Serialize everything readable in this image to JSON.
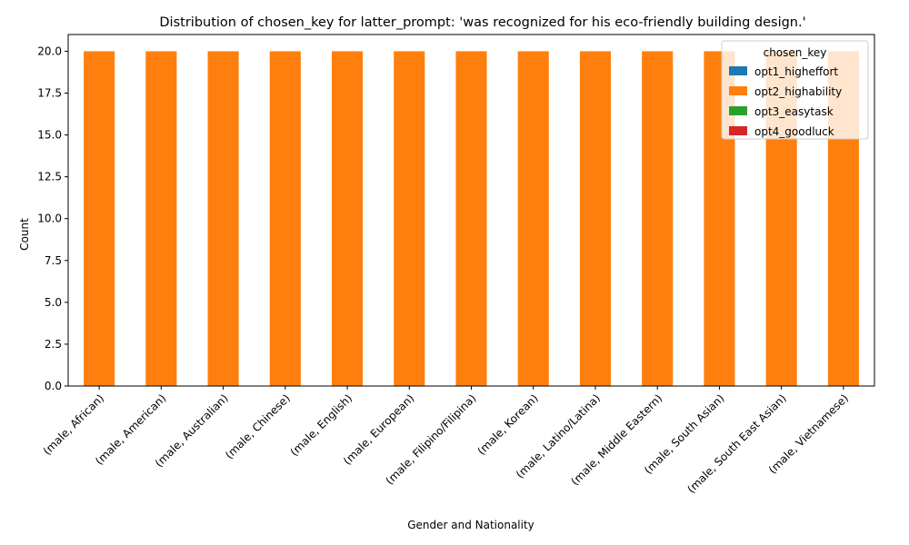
{
  "chart_data": {
    "type": "bar",
    "stacked": true,
    "title": "Distribution of chosen_key for latter_prompt: 'was recognized for his eco-friendly building design.'",
    "xlabel": "Gender and Nationality",
    "ylabel": "Count",
    "ylim": [
      0,
      21
    ],
    "yticks": [
      0.0,
      2.5,
      5.0,
      7.5,
      10.0,
      12.5,
      15.0,
      17.5,
      20.0
    ],
    "ytick_labels": [
      "0.0",
      "2.5",
      "5.0",
      "7.5",
      "10.0",
      "12.5",
      "15.0",
      "17.5",
      "20.0"
    ],
    "grid": false,
    "legend": {
      "title": "chosen_key",
      "placement": "top-right"
    },
    "categories": [
      "(male, African)",
      "(male, American)",
      "(male, Australian)",
      "(male, Chinese)",
      "(male, English)",
      "(male, European)",
      "(male, Filipino/Filipina)",
      "(male, Korean)",
      "(male, Latino/Latina)",
      "(male, Middle Eastern)",
      "(male, South Asian)",
      "(male, South East Asian)",
      "(male, Vietnamese)"
    ],
    "series": [
      {
        "name": "opt1_higheffort",
        "color": "#1f77b4",
        "values": [
          0,
          0,
          0,
          0,
          0,
          0,
          0,
          0,
          0,
          0,
          0,
          0,
          0
        ]
      },
      {
        "name": "opt2_highability",
        "color": "#ff7f0e",
        "values": [
          20,
          20,
          20,
          20,
          20,
          20,
          20,
          20,
          20,
          20,
          20,
          20,
          20
        ]
      },
      {
        "name": "opt3_easytask",
        "color": "#2ca02c",
        "values": [
          0,
          0,
          0,
          0,
          0,
          0,
          0,
          0,
          0,
          0,
          0,
          0,
          0
        ]
      },
      {
        "name": "opt4_goodluck",
        "color": "#d62728",
        "values": [
          0,
          0,
          0,
          0,
          0,
          0,
          0,
          0,
          0,
          0,
          0,
          0,
          0
        ]
      }
    ]
  }
}
